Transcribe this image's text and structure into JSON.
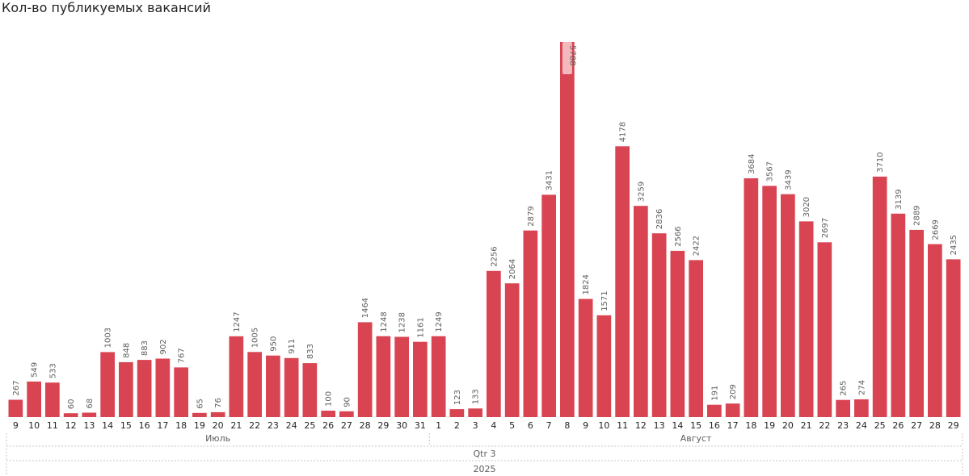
{
  "title": "Кол-во публикуемых вакансий",
  "colors": {
    "bar": "#d94452",
    "bar_highlight": "#f4b9bd",
    "separator": "#c8c6c4"
  },
  "chart_data": {
    "type": "bar",
    "title": "Кол-во публикуемых вакансий",
    "categories": [
      "9",
      "10",
      "11",
      "12",
      "13",
      "14",
      "15",
      "16",
      "17",
      "18",
      "19",
      "20",
      "21",
      "22",
      "23",
      "24",
      "25",
      "26",
      "27",
      "28",
      "29",
      "30",
      "31",
      "1",
      "2",
      "3",
      "4",
      "5",
      "6",
      "7",
      "8",
      "9",
      "10",
      "11",
      "12",
      "13",
      "14",
      "15",
      "16",
      "17",
      "18",
      "19",
      "20",
      "21",
      "22",
      "23",
      "24",
      "25",
      "26",
      "27",
      "28",
      "29"
    ],
    "values": [
      267,
      549,
      533,
      60,
      68,
      1003,
      848,
      883,
      902,
      767,
      65,
      76,
      1247,
      1005,
      950,
      911,
      833,
      100,
      90,
      1464,
      1248,
      1238,
      1161,
      1249,
      123,
      133,
      2256,
      2064,
      2879,
      3431,
      5788,
      1824,
      1571,
      4178,
      3259,
      2836,
      2566,
      2422,
      191,
      209,
      3684,
      3567,
      3439,
      3020,
      2697,
      265,
      274,
      3710,
      3139,
      2889,
      2669,
      2435
    ],
    "hierarchy": {
      "months": [
        {
          "label": "Июль",
          "start": 0,
          "count": 23
        },
        {
          "label": "Август",
          "start": 23,
          "count": 29
        }
      ],
      "quarter": "Qtr 3",
      "year": "2025"
    },
    "data_labels": true,
    "label_rotation": "vertical",
    "highlighted_value_index": 30,
    "ylim": [
      0,
      5788
    ],
    "grid": false,
    "legend": "none"
  }
}
